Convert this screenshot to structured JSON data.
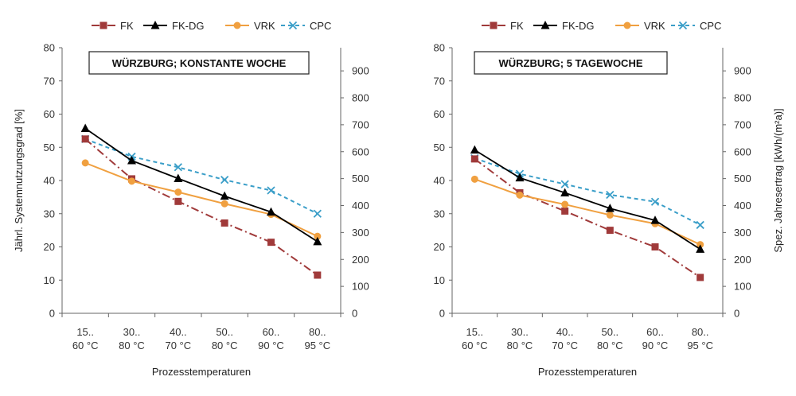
{
  "chart_data": [
    {
      "type": "line",
      "title": "WÜRZBURG; KONSTANTE WOCHE",
      "xlabel": "Prozesstemperaturen",
      "ylabel": "Jährl. Systemnutzungsgrad [%]",
      "ylabel_right": "",
      "categories": [
        [
          "15..",
          "60 °C"
        ],
        [
          "30..",
          "80 °C"
        ],
        [
          "40..",
          "70 °C"
        ],
        [
          "50..",
          "80 °C"
        ],
        [
          "60..",
          "90 °C"
        ],
        [
          "80..",
          "95 °C"
        ]
      ],
      "ylim": [
        0,
        80
      ],
      "yticks": [
        0,
        10,
        20,
        30,
        40,
        50,
        60,
        70,
        80
      ],
      "y2lim": [
        0,
        986
      ],
      "y2ticks": [
        0,
        100,
        200,
        300,
        400,
        500,
        600,
        700,
        800,
        900
      ],
      "legend_position": "top",
      "grid": false,
      "series": [
        {
          "name": "FK",
          "values": [
            52.5,
            40.5,
            33.7,
            27.2,
            21.4,
            11.5
          ],
          "color": "#a03a3a",
          "marker": "square",
          "dash": "10,4,2,4"
        },
        {
          "name": "FK-DG",
          "values": [
            55.7,
            46.0,
            40.6,
            35.3,
            30.5,
            21.6
          ],
          "color": "#000000",
          "marker": "triangle",
          "dash": ""
        },
        {
          "name": "VRK",
          "values": [
            45.3,
            39.8,
            36.5,
            33.0,
            29.8,
            23.2
          ],
          "color": "#f0a040",
          "marker": "circle",
          "dash": ""
        },
        {
          "name": "CPC",
          "values": [
            52.5,
            47.2,
            44.0,
            40.2,
            37.0,
            30.0
          ],
          "color": "#3a9ec8",
          "marker": "x",
          "dash": "5,4"
        }
      ]
    },
    {
      "type": "line",
      "title": "WÜRZBURG; 5 TAGEWOCHE",
      "xlabel": "Prozesstemperaturen",
      "ylabel": "",
      "ylabel_right": "Spez. Jahresertrag [kWh/(m²a)]",
      "categories": [
        [
          "15..",
          "60 °C"
        ],
        [
          "30..",
          "80 °C"
        ],
        [
          "40..",
          "70 °C"
        ],
        [
          "50..",
          "80 °C"
        ],
        [
          "60..",
          "90 °C"
        ],
        [
          "80..",
          "95 °C"
        ]
      ],
      "ylim": [
        0,
        80
      ],
      "yticks": [
        0,
        10,
        20,
        30,
        40,
        50,
        60,
        70,
        80
      ],
      "y2lim": [
        0,
        986
      ],
      "y2ticks": [
        0,
        100,
        200,
        300,
        400,
        500,
        600,
        700,
        800,
        900
      ],
      "legend_position": "top",
      "grid": false,
      "series": [
        {
          "name": "FK",
          "values": [
            46.5,
            36.3,
            30.8,
            25.0,
            20.0,
            10.8
          ],
          "color": "#a03a3a",
          "marker": "square",
          "dash": "10,4,2,4"
        },
        {
          "name": "FK-DG",
          "values": [
            49.2,
            40.8,
            36.3,
            31.6,
            28.0,
            19.3
          ],
          "color": "#000000",
          "marker": "triangle",
          "dash": ""
        },
        {
          "name": "VRK",
          "values": [
            40.4,
            35.6,
            32.8,
            29.6,
            27.0,
            20.7
          ],
          "color": "#f0a040",
          "marker": "circle",
          "dash": ""
        },
        {
          "name": "CPC",
          "values": [
            46.7,
            42.0,
            38.9,
            35.7,
            33.6,
            26.6
          ],
          "color": "#3a9ec8",
          "marker": "x",
          "dash": "5,4"
        }
      ]
    }
  ]
}
